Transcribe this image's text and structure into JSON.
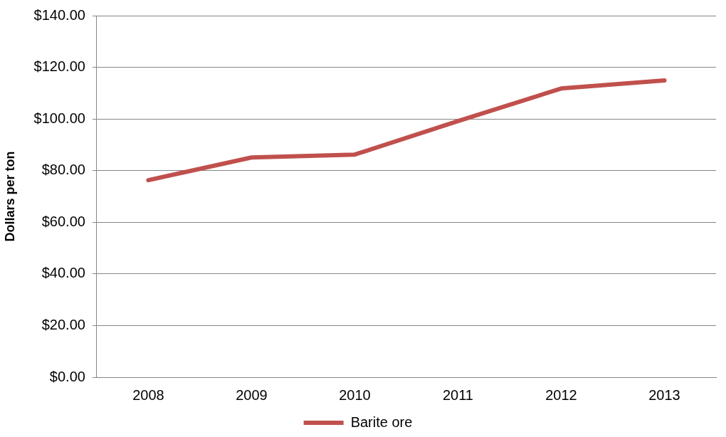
{
  "chart_data": {
    "type": "line",
    "ylabel": "Dollars per ton",
    "categories": [
      "2008",
      "2009",
      "2010",
      "2011",
      "2012",
      "2013"
    ],
    "series": [
      {
        "name": "Barite ore",
        "color": "#c0504d",
        "values": [
          76.3,
          85.1,
          86.2,
          99.2,
          111.8,
          114.9
        ]
      }
    ],
    "ylim": [
      0,
      140
    ],
    "yticks": [
      {
        "value": 0,
        "label": "$0.00"
      },
      {
        "value": 20,
        "label": "$20.00"
      },
      {
        "value": 40,
        "label": "$40.00"
      },
      {
        "value": 60,
        "label": "$60.00"
      },
      {
        "value": 80,
        "label": "$80.00"
      },
      {
        "value": 100,
        "label": "$100.00"
      },
      {
        "value": 120,
        "label": "$120.00"
      },
      {
        "value": 140,
        "label": "$140.00"
      }
    ],
    "grid": "y",
    "legend": "bottom",
    "marker": "none",
    "line_style": "solid"
  }
}
